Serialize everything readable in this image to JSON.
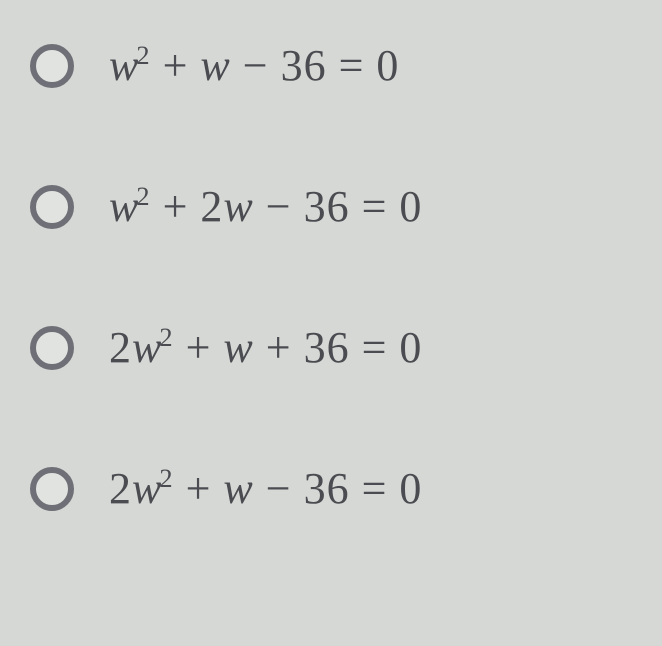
{
  "background_color": "#d6d8d5",
  "radio_border_color": "#6f7077",
  "radio_fill_color": "#e1e3e0",
  "text_color": "#4b4c51",
  "font_size": 44,
  "options": [
    {
      "coef_w2": "",
      "coef_w": "",
      "constant_sign": "−",
      "constant": "36"
    },
    {
      "coef_w2": "",
      "coef_w": "2",
      "constant_sign": "−",
      "constant": "36"
    },
    {
      "coef_w2": "2",
      "coef_w": "",
      "constant_sign": "+",
      "constant": "36"
    },
    {
      "coef_w2": "2",
      "coef_w": "",
      "constant_sign": "−",
      "constant": "36"
    }
  ]
}
